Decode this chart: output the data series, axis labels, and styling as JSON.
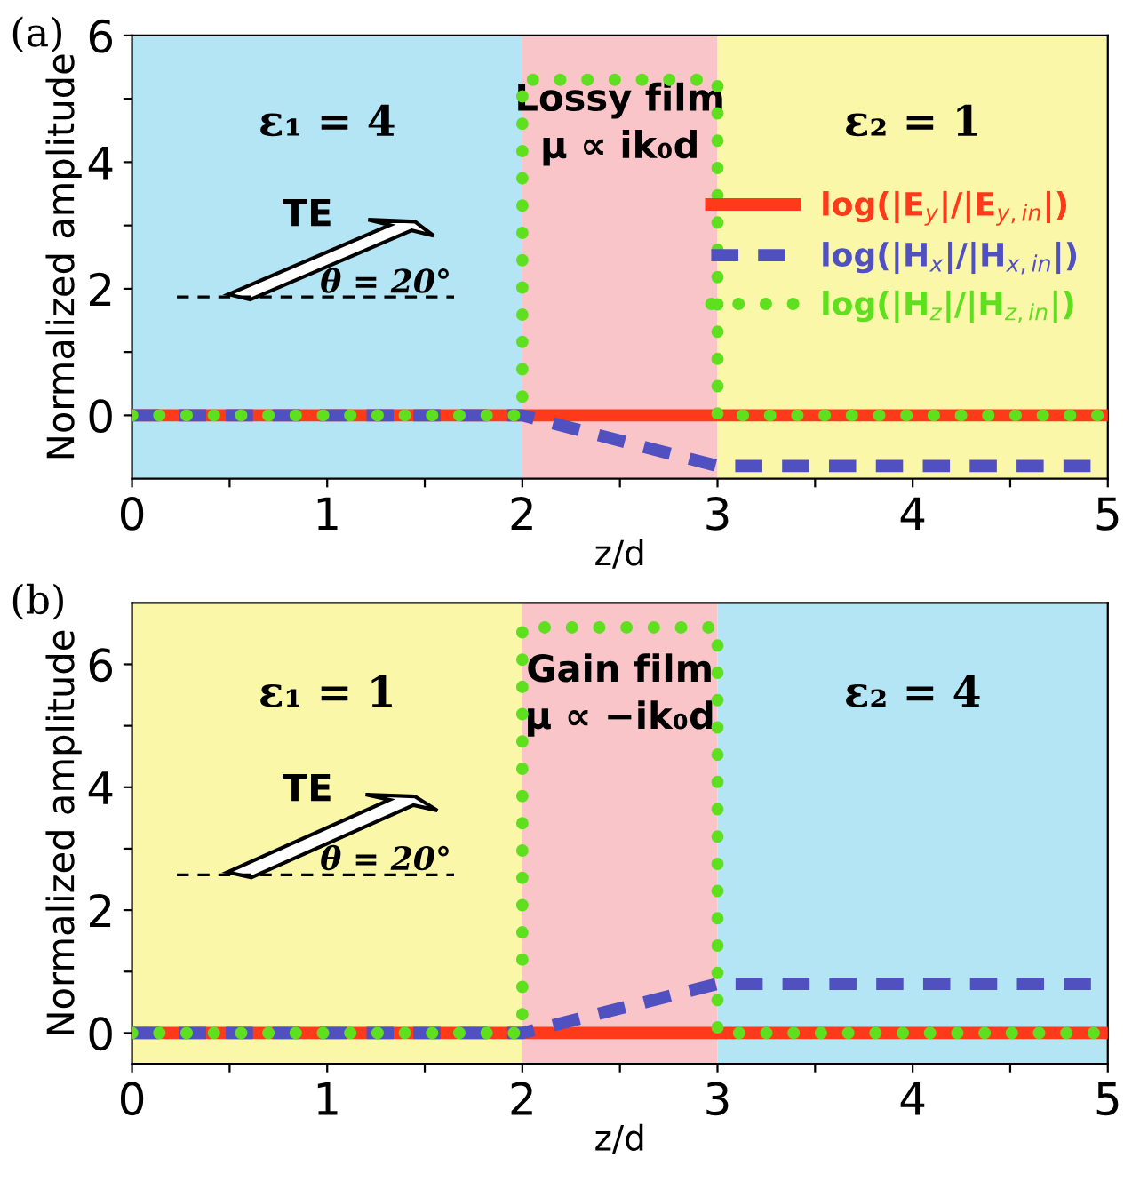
{
  "chart_data": [
    {
      "type": "line",
      "xlabel": "z/d",
      "ylabel": "Normalized amplitude",
      "xlim": [
        0,
        5
      ],
      "ylim": [
        -1,
        6
      ],
      "xticks": [
        0,
        {
          "value": 0.5,
          "label": null
        },
        1,
        {
          "value": 1.5,
          "label": null
        },
        2,
        {
          "value": 2.5,
          "label": null
        },
        3,
        {
          "value": 3.5,
          "label": null
        },
        4,
        {
          "value": 4.5,
          "label": null
        },
        5
      ],
      "yticks": [
        0,
        {
          "value": 1,
          "label": null
        },
        2,
        {
          "value": 3,
          "label": null
        },
        4,
        {
          "value": 5,
          "label": null
        },
        6
      ],
      "bands": [
        {
          "axis": "x",
          "from": 0,
          "to": 2,
          "label": "ε₁ = 4",
          "color": "#b3e5f5"
        },
        {
          "axis": "x",
          "from": 2,
          "to": 3,
          "label": "Lossy film\nμ ∝ ik₀d",
          "color": "#f9c5c8"
        },
        {
          "axis": "x",
          "from": 3,
          "to": 5,
          "label": "ε₂ = 1",
          "color": "#fbf7a8"
        }
      ],
      "series": [
        {
          "name": "log(|E$_{y}$|/|E$_{y,in}$|)",
          "color": "#ff3a1a",
          "line_style": "solid",
          "x": [
            0,
            5
          ],
          "values": [
            0,
            0
          ]
        },
        {
          "name": "log(|H$_{x}$|/|H$_{x,in}$|)",
          "color": "#5050c0",
          "line_style": "dashed",
          "x": [
            0,
            2,
            3,
            5
          ],
          "values": [
            0,
            0,
            -0.8,
            -0.8
          ]
        },
        {
          "name": "log(|H$_{z}$|/|H$_{z,in}$|)",
          "color": "#5ee01e",
          "line_style": "dotted",
          "x": [
            0,
            2,
            2,
            3,
            3,
            5
          ],
          "values": [
            0,
            0,
            5.3,
            5.3,
            0,
            0
          ]
        }
      ],
      "legend": "right",
      "annotations": [
        "(a)",
        "TE",
        "θ = 20°"
      ]
    },
    {
      "type": "line",
      "xlabel": "z/d",
      "ylabel": "Normalized amplitude",
      "xlim": [
        0,
        5
      ],
      "ylim": [
        -0.5,
        7
      ],
      "xticks": [
        0,
        {
          "value": 0.5,
          "label": null
        },
        1,
        {
          "value": 1.5,
          "label": null
        },
        2,
        {
          "value": 2.5,
          "label": null
        },
        3,
        {
          "value": 3.5,
          "label": null
        },
        4,
        {
          "value": 4.5,
          "label": null
        },
        5
      ],
      "yticks": [
        0,
        {
          "value": 1,
          "label": null
        },
        2,
        {
          "value": 3,
          "label": null
        },
        4,
        {
          "value": 5,
          "label": null
        },
        6
      ],
      "bands": [
        {
          "axis": "x",
          "from": 0,
          "to": 2,
          "label": "ε₁ = 1",
          "color": "#fbf7a8"
        },
        {
          "axis": "x",
          "from": 2,
          "to": 3,
          "label": "Gain film\nμ ∝ −ik₀d",
          "color": "#f9c5c8"
        },
        {
          "axis": "x",
          "from": 3,
          "to": 5,
          "label": "ε₂ = 4",
          "color": "#b3e5f5"
        }
      ],
      "series": [
        {
          "color": "#ff3a1a",
          "line_style": "solid",
          "x": [
            0,
            5
          ],
          "values": [
            0,
            0
          ]
        },
        {
          "color": "#5050c0",
          "line_style": "dashed",
          "x": [
            0,
            2,
            3,
            5
          ],
          "values": [
            0,
            0,
            0.8,
            0.8
          ]
        },
        {
          "color": "#5ee01e",
          "line_style": "dotted",
          "x": [
            0,
            2,
            2,
            3,
            3,
            5
          ],
          "values": [
            0,
            0,
            6.6,
            6.6,
            0,
            0
          ]
        }
      ],
      "legend": false,
      "annotations": [
        "(b)",
        "TE",
        "θ = 20°"
      ]
    }
  ]
}
